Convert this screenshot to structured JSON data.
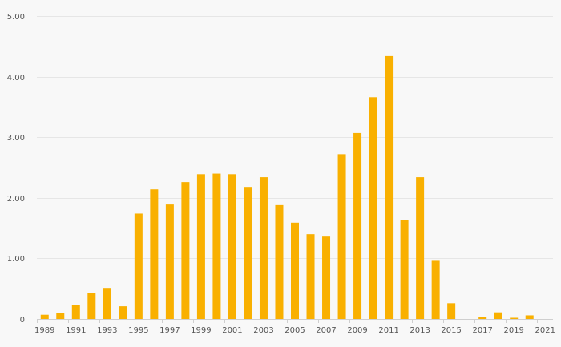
{
  "chart_data": {
    "type": "bar",
    "categories": [
      "1989",
      "1990",
      "1991",
      "1992",
      "1993",
      "1994",
      "1995",
      "1996",
      "1997",
      "1998",
      "1999",
      "2000",
      "2001",
      "2002",
      "2003",
      "2004",
      "2005",
      "2006",
      "2007",
      "2008",
      "2009",
      "2010",
      "2011",
      "2012",
      "2013",
      "2014",
      "2015",
      "2016",
      "2017",
      "2018",
      "2019",
      "2020",
      "2021"
    ],
    "values": [
      0.07,
      0.1,
      0.23,
      0.43,
      0.5,
      0.21,
      1.74,
      2.14,
      1.89,
      2.26,
      2.39,
      2.4,
      2.39,
      2.18,
      2.34,
      1.88,
      1.59,
      1.4,
      1.36,
      2.72,
      3.07,
      3.66,
      4.34,
      1.64,
      2.34,
      0.96,
      0.26,
      0,
      0.03,
      0.11,
      0.02,
      0.06,
      0
    ],
    "x_tick_labels": [
      "1989",
      "1991",
      "1993",
      "1995",
      "1997",
      "1999",
      "2001",
      "2003",
      "2005",
      "2007",
      "2009",
      "2011",
      "2013",
      "2015",
      "2017",
      "2019",
      "2021"
    ],
    "y_ticks": [
      0,
      1,
      2,
      3,
      4,
      5
    ],
    "y_tick_labels": [
      "0",
      "1.00",
      "2.00",
      "3.00",
      "4.00",
      "5.00"
    ],
    "ylim": [
      0,
      5
    ],
    "title": "",
    "xlabel": "",
    "ylabel": "",
    "grid": true,
    "colors": {
      "bar": "#f9b000",
      "background": "#f8f8f8"
    }
  }
}
